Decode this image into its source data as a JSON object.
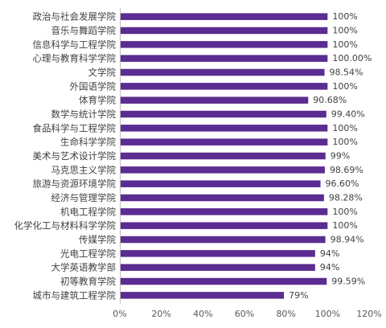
{
  "chart_data": {
    "type": "bar",
    "orientation": "horizontal",
    "categories": [
      "政治与社会发展学院",
      "音乐与舞蹈学院",
      "信息科学与工程学院",
      "心理与教育科学学院",
      "文学院",
      "外国语学院",
      "体育学院",
      "数学与统计学院",
      "食品科学与工程学院",
      "生命科学学院",
      "美术与艺术设计学院",
      "马克思主义学院",
      "旅游与资源环境学院",
      "经济与管理学院",
      "机电工程学院",
      "化学化工与材料科学学院",
      "传媒学院",
      "光电工程学院",
      "大学英语教学部",
      "初等教育学院",
      "城市与建筑工程学院"
    ],
    "values": [
      100,
      100,
      100,
      100,
      98.54,
      100,
      90.68,
      99.4,
      100,
      100,
      99,
      98.69,
      96.6,
      98.28,
      100,
      100,
      98.94,
      94,
      94,
      99.59,
      79
    ],
    "value_labels": [
      "100%",
      "100%",
      "100%",
      "100.00%",
      "98.54%",
      "100%",
      "90.68%",
      "99.40%",
      "100%",
      "100%",
      "99%",
      "98.69%",
      "96.60%",
      "98.28%",
      "100%",
      "100%",
      "98.94%",
      "94%",
      "94%",
      "99.59%",
      "79%"
    ],
    "xlim": [
      0,
      120
    ],
    "x_ticks": [
      "0%",
      "20%",
      "40%",
      "60%",
      "80%",
      "100%",
      "120%"
    ],
    "grid": false,
    "bar_color": "#5b2c91"
  }
}
